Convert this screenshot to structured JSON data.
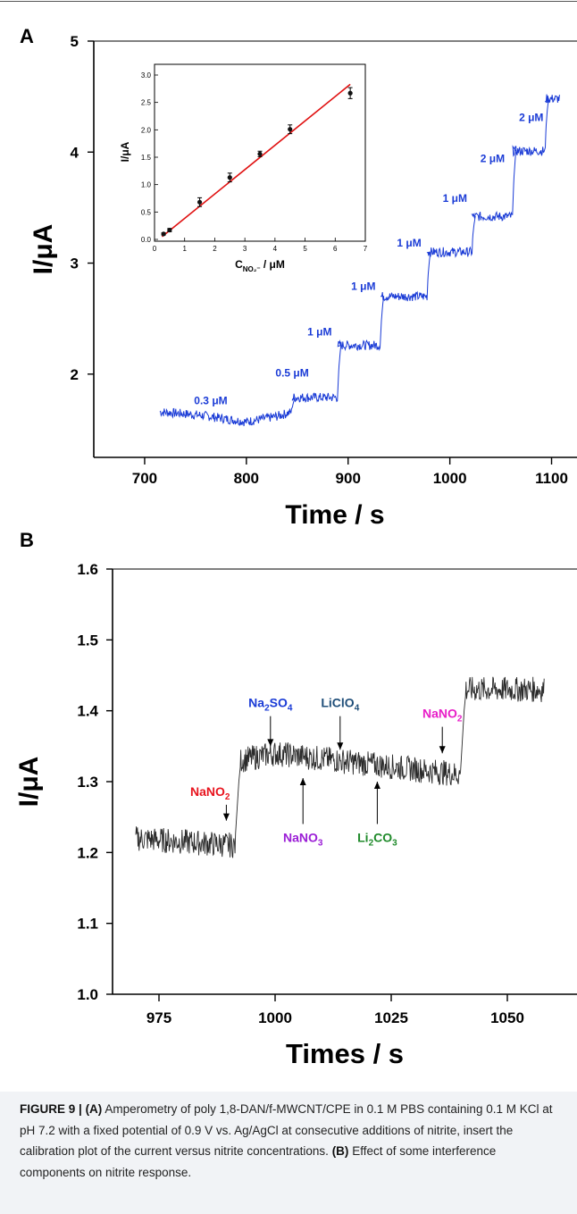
{
  "panel_a_letter": "A",
  "panel_b_letter": "B",
  "caption": {
    "label": "FIGURE 9 |",
    "part_a_tag": "(A)",
    "part_a_text": " Amperometry of poly 1,8-DAN/f-MWCNT/CPE in 0.1 M PBS containing 0.1 M KCl at pH 7.2 with a fixed potential of 0.9 V vs. Ag/AgCl at consecutive additions of nitrite, insert the calibration plot of the current versus nitrite concentrations. ",
    "part_b_tag": "(B)",
    "part_b_text": " Effect of some interference components on nitrite response."
  },
  "colors": {
    "trace_a": "#1a3bd6",
    "trace_b": "#2b2b2b",
    "fit_line": "#e01010",
    "nano2_label": "#e8141e",
    "na2so4_label": "#1a3bd6",
    "liclo4_label": "#1f4e79",
    "nano2_label_2": "#e81ec8",
    "nano3_label": "#9b1ed6",
    "li2co3_label": "#1f8a2a"
  },
  "chart_data": [
    {
      "id": "A-main",
      "type": "line",
      "xlabel": "Time / s",
      "ylabel": "I/μA",
      "xlim": [
        650,
        1125
      ],
      "ylim": [
        1.25,
        5
      ],
      "xticks": [
        700,
        800,
        900,
        1000,
        1100
      ],
      "yticks": [
        2,
        3,
        4,
        5
      ],
      "series": [
        {
          "segments": [
            {
              "x": [
                715,
                755,
                800,
                830,
                845
              ],
              "y": [
                1.66,
                1.63,
                1.57,
                1.62,
                1.66
              ]
            },
            {
              "x": [
                845,
                890
              ],
              "y": [
                1.79,
                1.79
              ]
            },
            {
              "x": [
                890,
                932
              ],
              "y": [
                2.26,
                2.26
              ]
            },
            {
              "x": [
                932,
                978
              ],
              "y": [
                2.7,
                2.7
              ]
            },
            {
              "x": [
                978,
                1022
              ],
              "y": [
                3.1,
                3.1
              ]
            },
            {
              "x": [
                1022,
                1062
              ],
              "y": [
                3.42,
                3.42
              ]
            },
            {
              "x": [
                1062,
                1094
              ],
              "y": [
                4.01,
                4.01
              ]
            },
            {
              "x": [
                1094,
                1108
              ],
              "y": [
                4.48,
                4.48
              ]
            }
          ]
        }
      ],
      "annotations": [
        {
          "text": "0.3 μM",
          "x": 765,
          "y": 1.73
        },
        {
          "text": "0.5 μM",
          "x": 845,
          "y": 1.98
        },
        {
          "text": "1 μM",
          "x": 872,
          "y": 2.35
        },
        {
          "text": "1 μM",
          "x": 915,
          "y": 2.76
        },
        {
          "text": "1 μM",
          "x": 960,
          "y": 3.15
        },
        {
          "text": "1 μM",
          "x": 1005,
          "y": 3.55
        },
        {
          "text": "2 μM",
          "x": 1042,
          "y": 3.91
        },
        {
          "text": "2 μM",
          "x": 1080,
          "y": 4.28
        }
      ]
    },
    {
      "id": "A-inset",
      "type": "scatter",
      "xlabel": "C",
      "xlabel_sub": "NO₂⁻",
      "xlabel_tail": " / μM",
      "ylabel": "I/μA",
      "xlim": [
        0,
        7
      ],
      "ylim": [
        0,
        3.0
      ],
      "xticks": [
        "0",
        "1",
        "2",
        "3",
        "4",
        "5",
        "6",
        "7"
      ],
      "yticks": [
        "0.0",
        "0.5",
        "1.0",
        "1.5",
        "2.0",
        "2.5",
        "3.0"
      ],
      "points": {
        "x": [
          0.3,
          0.5,
          1.5,
          2.5,
          3.5,
          4.5,
          6.5
        ],
        "y": [
          0.1,
          0.17,
          0.68,
          1.13,
          1.56,
          2.01,
          2.67
        ],
        "err": [
          0.02,
          0.03,
          0.08,
          0.08,
          0.05,
          0.08,
          0.1
        ]
      },
      "fit": {
        "x": [
          0.25,
          6.5
        ],
        "y": [
          0.05,
          2.83
        ]
      }
    },
    {
      "id": "B-main",
      "type": "line",
      "xlabel": "Times / s",
      "ylabel": "I/μA",
      "xlim": [
        965,
        1065
      ],
      "ylim": [
        1.0,
        1.6
      ],
      "xticks": [
        975,
        1000,
        1025,
        1050
      ],
      "yticks": [
        "1.0",
        "1.1",
        "1.2",
        "1.3",
        "1.4",
        "1.5",
        "1.6"
      ],
      "series": [
        {
          "segments": [
            {
              "x": [
                970,
                991.5
              ],
              "y": [
                1.22,
                1.21
              ]
            },
            {
              "x": [
                992.5,
                1000,
                1020,
                1040
              ],
              "y": [
                1.33,
                1.34,
                1.325,
                1.31
              ]
            },
            {
              "x": [
                1041,
                1058
              ],
              "y": [
                1.43,
                1.43
              ]
            }
          ]
        }
      ],
      "annotations": [
        {
          "label": "NaNO",
          "sub": "2",
          "tail": "",
          "x": 986,
          "y": 1.28,
          "arrow_to": 1.245,
          "color": "nano2_label"
        },
        {
          "label": "Na",
          "sub": "2",
          "tail": "SO",
          "sub2": "4",
          "x": 999,
          "y": 1.405,
          "arrow_to": 1.35,
          "color": "na2so4_label"
        },
        {
          "label": "LiClO",
          "sub": "4",
          "tail": "",
          "x": 1014,
          "y": 1.405,
          "arrow_to": 1.345,
          "color": "liclo4_label"
        },
        {
          "label": "NaNO",
          "sub": "2",
          "tail": "",
          "x": 1036,
          "y": 1.39,
          "arrow_to": 1.34,
          "color": "nano2_label_2"
        },
        {
          "label": "NaNO",
          "sub": "3",
          "tail": "",
          "x": 1006,
          "y": 1.215,
          "arrow_to": 1.305,
          "color": "nano3_label"
        },
        {
          "label": "Li",
          "sub": "2",
          "tail": "CO",
          "sub2": "3",
          "x": 1022,
          "y": 1.215,
          "arrow_to": 1.3,
          "color": "li2co3_label"
        }
      ]
    }
  ]
}
